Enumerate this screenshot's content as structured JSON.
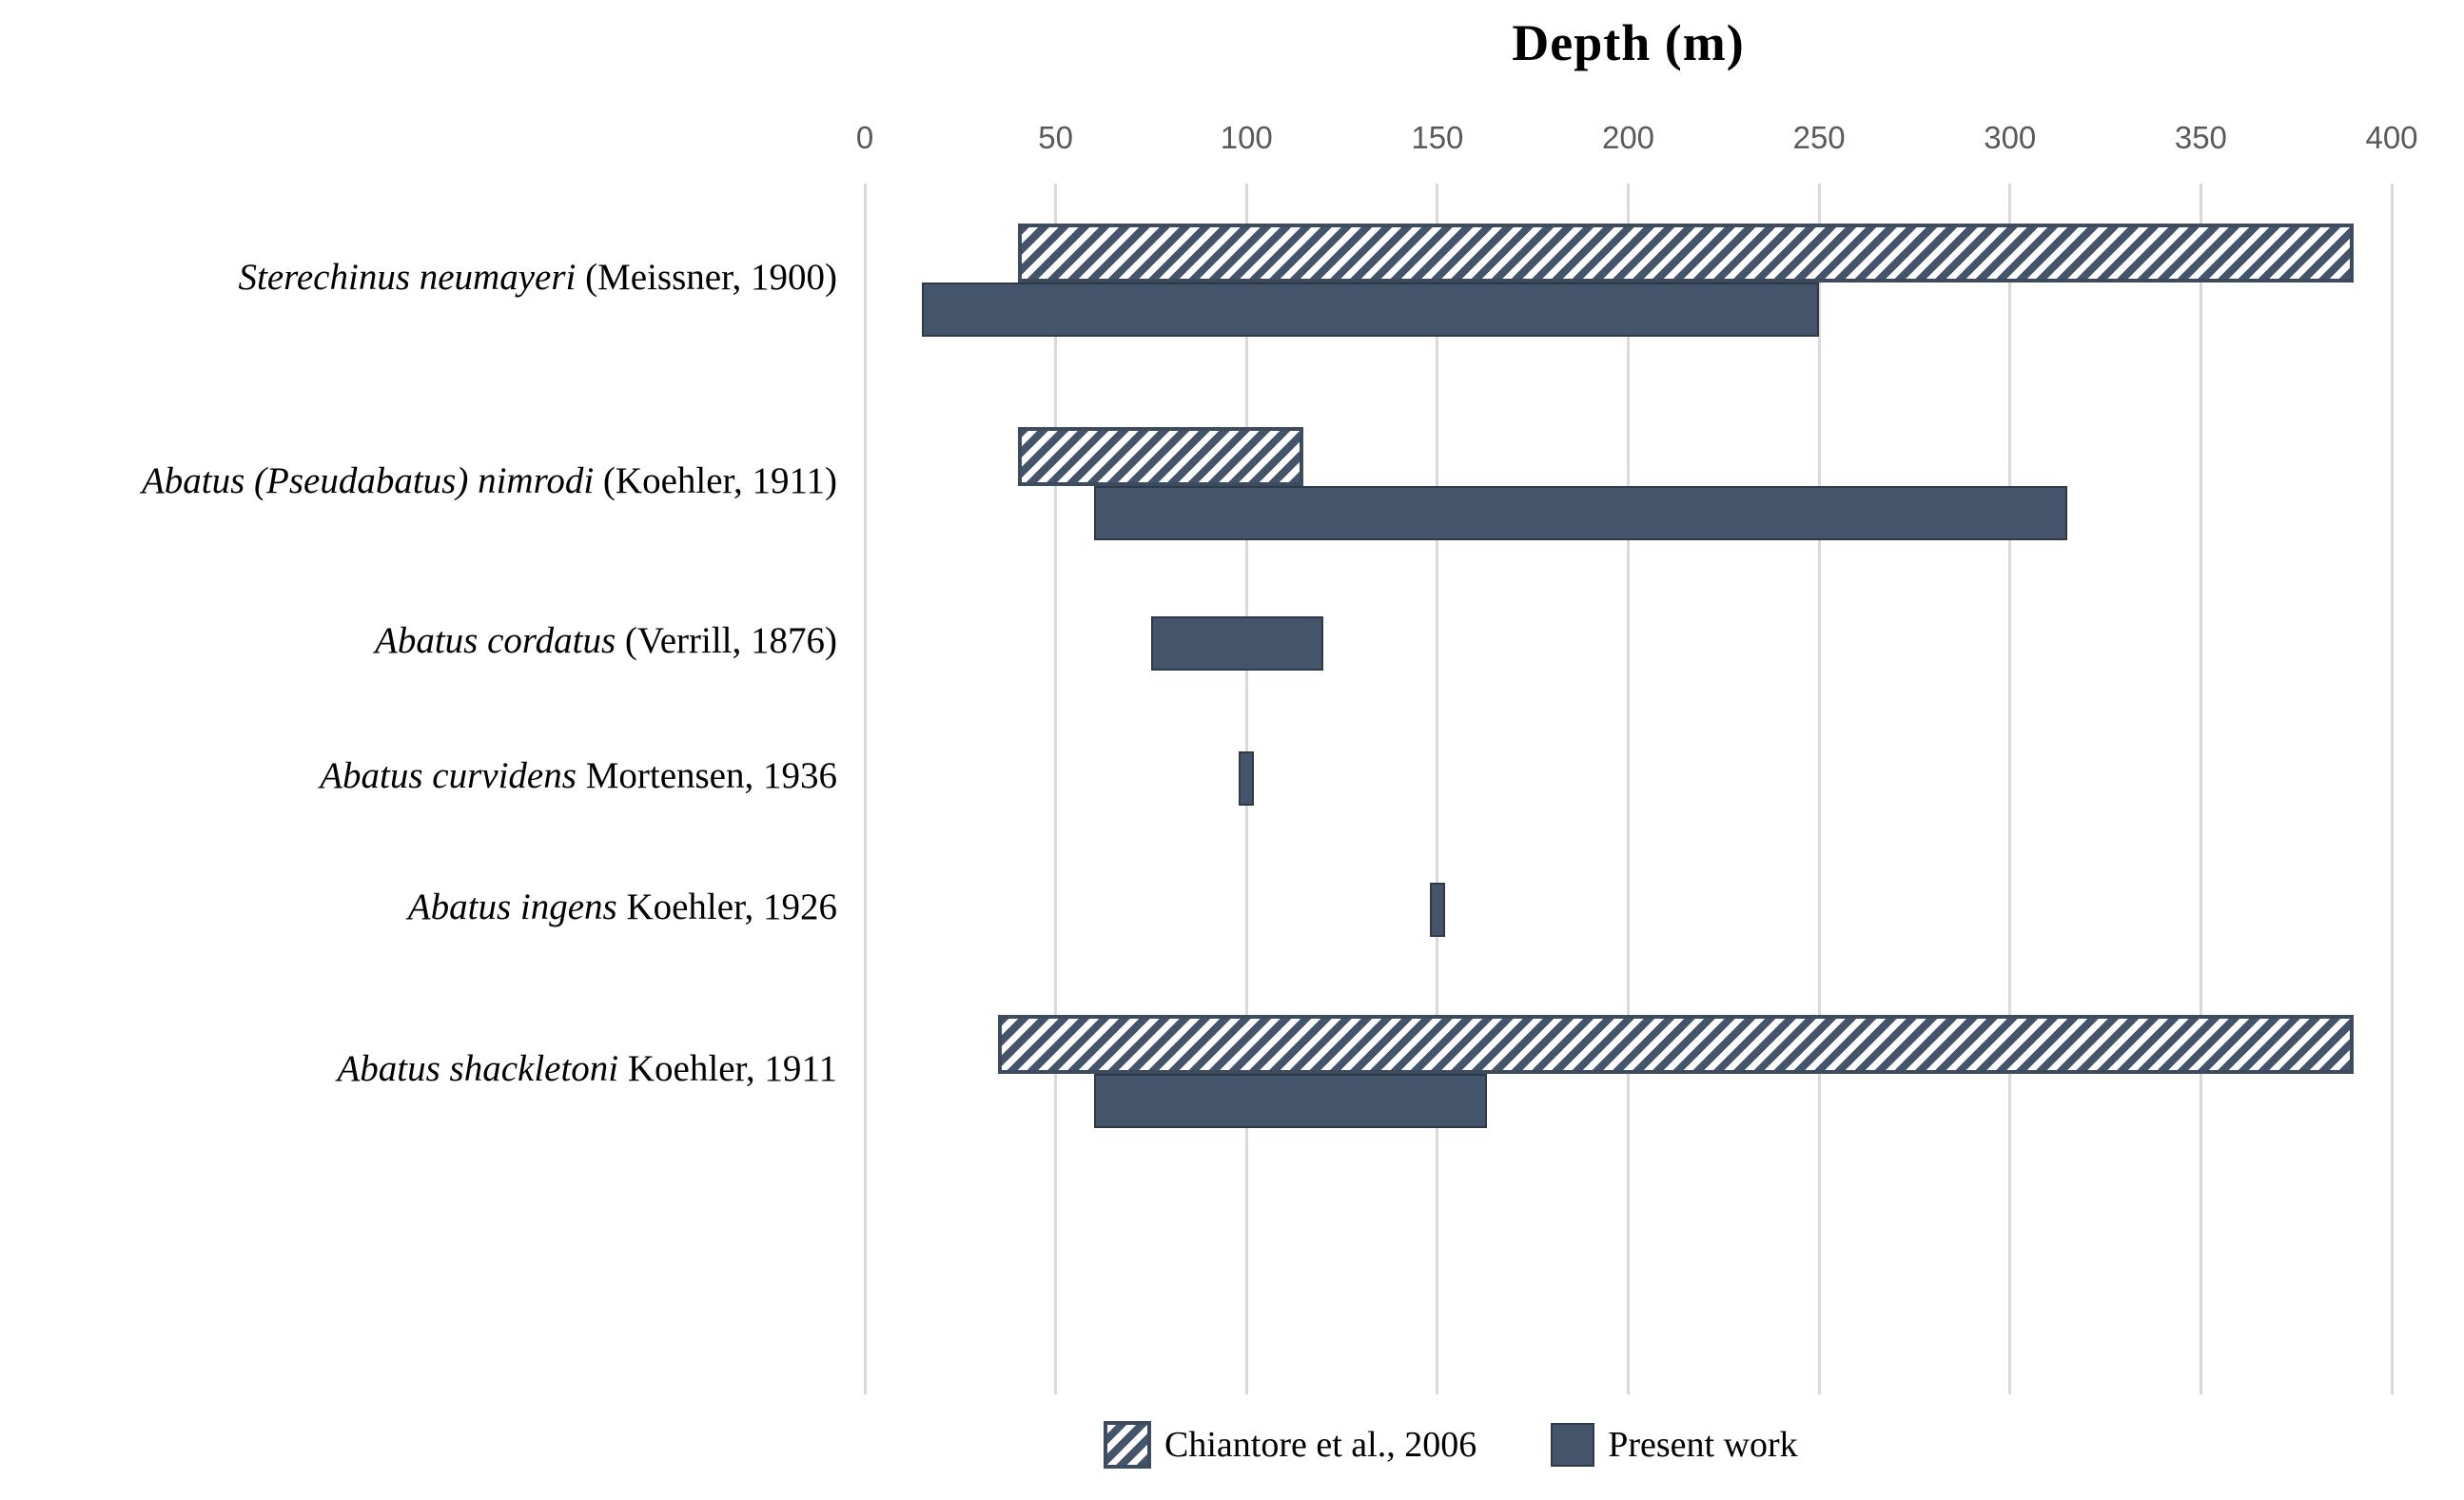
{
  "chart_data": {
    "type": "bar",
    "subtype": "horizontal-range-bars",
    "title": "Depth (m)",
    "xlabel": "Depth (m)",
    "ylabel": "",
    "axis": {
      "min": 0,
      "max": 400,
      "step": 50,
      "position": "top",
      "tick_labels": [
        "0",
        "50",
        "100",
        "150",
        "200",
        "250",
        "300",
        "350",
        "400"
      ],
      "grid": true
    },
    "categories": [
      {
        "italic": "Sterechinus neumayeri",
        "plain": " (Meissner, 1900)"
      },
      {
        "italic": "Abatus (Pseudabatus) nimrodi",
        "plain": " (Koehler, 1911)"
      },
      {
        "italic": "Abatus cordatus",
        "plain": " (Verrill,  1876)"
      },
      {
        "italic": "Abatus curvidens",
        "plain": " Mortensen, 1936"
      },
      {
        "italic": "Abatus ingens",
        "plain": " Koehler, 1926"
      },
      {
        "italic": "Abatus shackletoni",
        "plain": " Koehler, 1911"
      }
    ],
    "series": [
      {
        "name": "Chiantore et al., 2006",
        "style": "hatched",
        "ranges": [
          [
            40,
            390
          ],
          [
            40,
            115
          ],
          null,
          null,
          null,
          [
            35,
            390
          ]
        ]
      },
      {
        "name": "Present work",
        "style": "solid",
        "ranges": [
          [
            15,
            250
          ],
          [
            60,
            315
          ],
          [
            75,
            120
          ],
          [
            98,
            102
          ],
          [
            148,
            152
          ],
          [
            60,
            163
          ]
        ]
      }
    ],
    "legend_position": "bottom",
    "colors": {
      "bar_fill": "#44546A",
      "bar_border": "#2F3A49",
      "hatch_stripe": "#44546A",
      "hatch_border": "#3D4B5F",
      "gridline": "#D9D9D9",
      "tick_text": "#595959",
      "text": "#000000"
    }
  },
  "legend": [
    {
      "label": "Chiantore et al., 2006",
      "swatch": "hatched"
    },
    {
      "label": "Present work",
      "swatch": "solid"
    }
  ]
}
